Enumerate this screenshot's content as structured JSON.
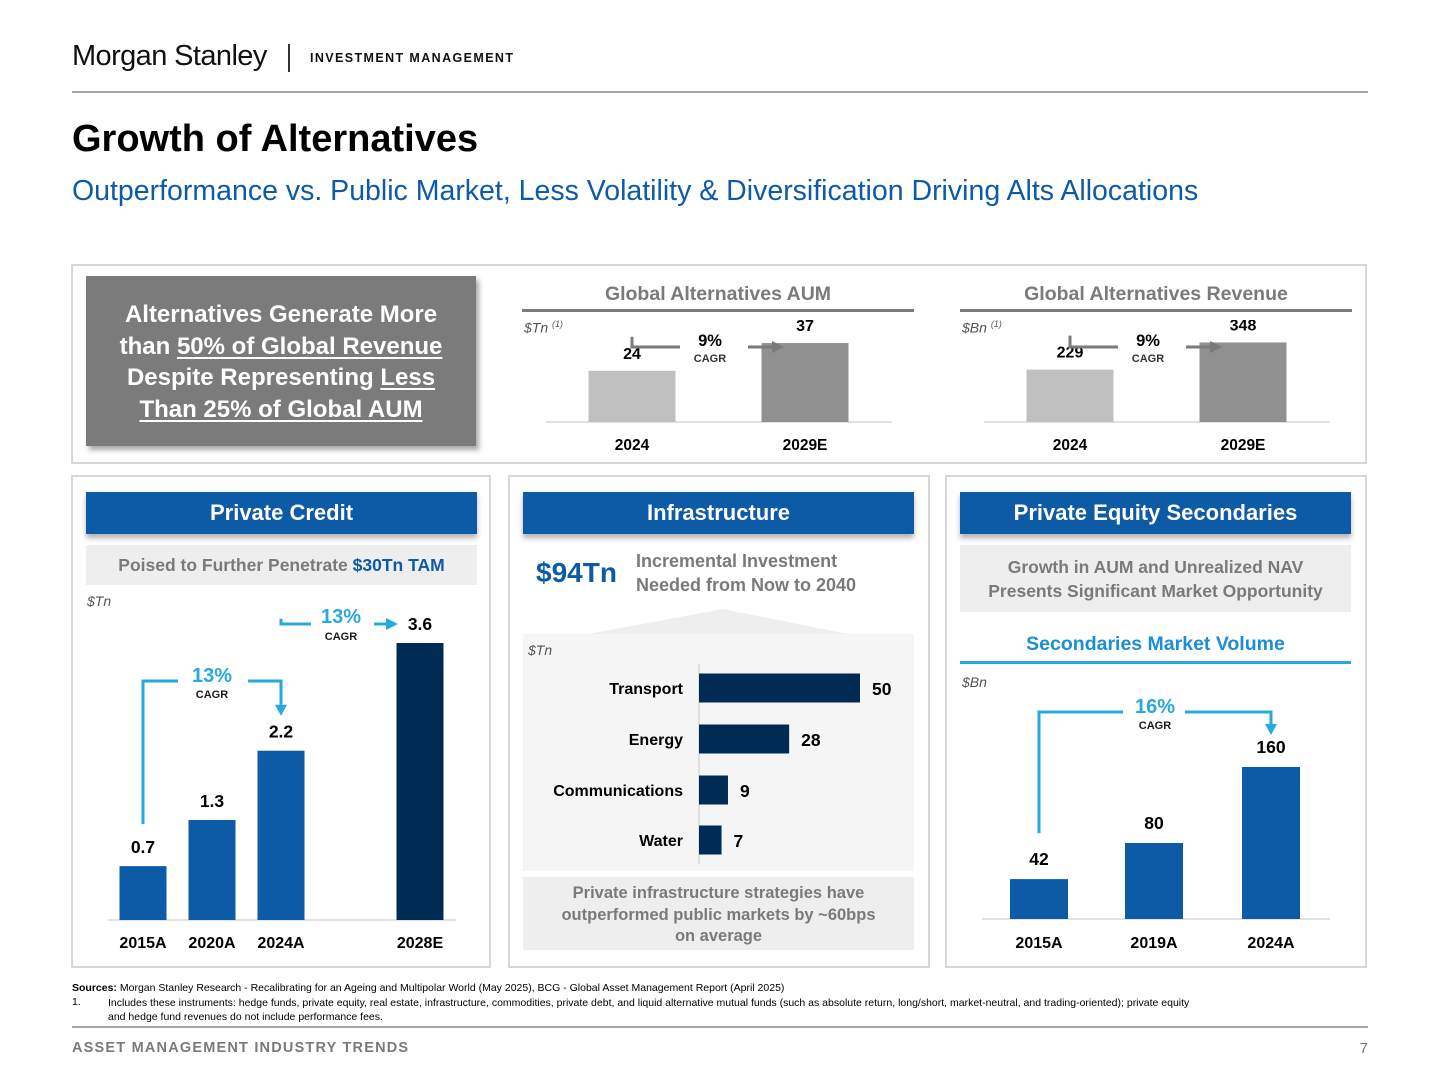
{
  "brand": {
    "name": "Morgan Stanley",
    "division": "INVESTMENT MANAGEMENT"
  },
  "title": "Growth of Alternatives",
  "subtitle": "Outperformance vs. Public Market, Less Volatility & Diversification Driving Alts Allocations",
  "callout": {
    "line1": "Alternatives Generate More",
    "line2_pre": "than ",
    "line2_u": "50% of Global Revenue",
    "line3_pre": "Despite Representing ",
    "line3_u": "Less",
    "line4_u": "Than 25% of Global AUM"
  },
  "aum": {
    "unit": "$Tn",
    "footnote_mark": "(1)",
    "cagr": "9%",
    "cagr_label": "CAGR"
  },
  "revenue": {
    "unit": "$Bn",
    "footnote_mark": "(1)",
    "cagr": "9%",
    "cagr_label": "CAGR"
  },
  "private_credit": {
    "header": "Private Credit",
    "tagline_pre": "Poised to Further Penetrate ",
    "tagline_highlight": "$30Tn TAM",
    "unit": "$Tn",
    "cagr1": "13%",
    "cagr2": "13%",
    "cagr_label": "CAGR"
  },
  "infrastructure": {
    "header": "Infrastructure",
    "big_number": "$94Tn",
    "big_desc_line1": "Incremental Investment",
    "big_desc_line2": "Needed from Now to 2040",
    "unit": "$Tn",
    "note_line1": "Private infrastructure strategies have",
    "note_line2": "outperformed public markets by ~60bps",
    "note_line3": "on average"
  },
  "pe_secondaries": {
    "header": "Private Equity Secondaries",
    "tagline_line1": "Growth in AUM and Unrealized NAV",
    "tagline_line2": "Presents Significant Market Opportunity",
    "unit": "$Bn",
    "cagr": "16%",
    "cagr_label": "CAGR"
  },
  "chart_data": [
    {
      "type": "bar",
      "title": "Global Alternatives AUM",
      "categories": [
        "2024",
        "2029E"
      ],
      "values": [
        24,
        37
      ],
      "colors": [
        "#c0c0c0",
        "#909090"
      ],
      "ylim": [
        0,
        45
      ]
    },
    {
      "type": "bar",
      "title": "Global Alternatives Revenue",
      "categories": [
        "2024",
        "2029E"
      ],
      "values": [
        229,
        348
      ],
      "colors": [
        "#c0c0c0",
        "#909090"
      ],
      "ylim": [
        0,
        420
      ]
    },
    {
      "type": "bar",
      "categories": [
        "2015A",
        "2020A",
        "2024A",
        "2028E"
      ],
      "values": [
        0.7,
        1.3,
        2.2,
        3.6
      ],
      "colors": [
        "#0d5aa7",
        "#0d5aa7",
        "#0d5aa7",
        "#002b55"
      ],
      "ylim": [
        0,
        3.6
      ]
    },
    {
      "type": "bar",
      "orientation": "horizontal",
      "categories": [
        "Transport",
        "Energy",
        "Communications",
        "Water"
      ],
      "values": [
        50,
        28,
        9,
        7
      ],
      "colors": [
        "#002b55",
        "#002b55",
        "#002b55",
        "#002b55"
      ],
      "xlim": [
        0,
        50
      ]
    },
    {
      "type": "bar",
      "title": "Secondaries Market Volume",
      "categories": [
        "2015A",
        "2019A",
        "2024A"
      ],
      "values": [
        42,
        80,
        160
      ],
      "colors": [
        "#0d5aa7",
        "#0d5aa7",
        "#0d5aa7"
      ],
      "ylim": [
        0,
        160
      ]
    }
  ],
  "footer": {
    "sources_label": "Sources:",
    "sources_text": "Morgan Stanley Research - Recalibrating for an Ageing and Multipolar World (May 2025), BCG - Global Asset Management Report (April 2025)",
    "note_num": "1.",
    "note_line1": "Includes these instruments: hedge funds, private equity, real estate, infrastructure, commodities, private debt, and liquid alternative mutual funds (such as absolute return, long/short, market-neutral, and trading-oriented); private equity",
    "note_line2": "and hedge fund revenues do not include performance fees.",
    "section": "ASSET MANAGEMENT INDUSTRY TRENDS",
    "page": "7"
  }
}
